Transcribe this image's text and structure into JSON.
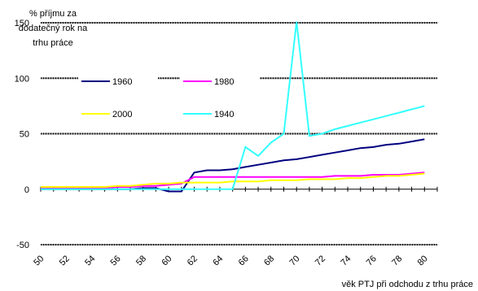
{
  "chart_data": {
    "type": "line",
    "title_fragment": "",
    "ylabel_lines": [
      "% příjmu za",
      "dodatečný rok na",
      "trhu práce"
    ],
    "xlabel": "věk PTJ při odchodu z trhu práce",
    "x": [
      50,
      51,
      52,
      53,
      54,
      55,
      56,
      57,
      58,
      59,
      60,
      61,
      62,
      63,
      64,
      65,
      66,
      67,
      68,
      69,
      70,
      71,
      72,
      73,
      74,
      75,
      76,
      77,
      78,
      79,
      80
    ],
    "ylim": [
      -50,
      150
    ],
    "yticks": [
      -50,
      0,
      50,
      100,
      150
    ],
    "xticks": [
      50,
      52,
      54,
      56,
      58,
      60,
      62,
      64,
      66,
      68,
      70,
      72,
      74,
      76,
      78,
      80
    ],
    "grid": true,
    "legend_position": "inside-top-left",
    "series": [
      {
        "name": "1960",
        "color": "#000080",
        "values": [
          0,
          0,
          0,
          0,
          0,
          0,
          0,
          0,
          1,
          1,
          -2,
          -2,
          15,
          17,
          17,
          18,
          20,
          22,
          24,
          26,
          27,
          29,
          31,
          33,
          35,
          37,
          38,
          40,
          41,
          43,
          45
        ]
      },
      {
        "name": "1980",
        "color": "#ff00ff",
        "values": [
          1,
          1,
          1,
          1,
          1,
          1,
          2,
          2,
          3,
          3,
          4,
          5,
          11,
          11,
          11,
          11,
          11,
          11,
          11,
          11,
          11,
          11,
          11,
          12,
          12,
          12,
          13,
          13,
          13,
          14,
          15
        ]
      },
      {
        "name": "2000",
        "color": "#ffff00",
        "values": [
          2,
          2,
          2,
          2,
          2,
          2,
          3,
          3,
          4,
          5,
          5,
          6,
          6,
          6,
          6,
          7,
          7,
          7,
          8,
          8,
          8,
          9,
          9,
          9,
          10,
          10,
          11,
          12,
          12,
          13,
          14
        ]
      },
      {
        "name": "1940",
        "color": "#33ffff",
        "values": [
          0,
          0,
          0,
          0,
          0,
          0,
          0,
          0,
          0,
          0,
          0,
          0,
          0,
          0,
          0,
          0,
          38,
          30,
          42,
          50,
          151,
          48,
          50,
          54,
          57,
          60,
          63,
          66,
          69,
          72,
          75
        ]
      }
    ]
  }
}
